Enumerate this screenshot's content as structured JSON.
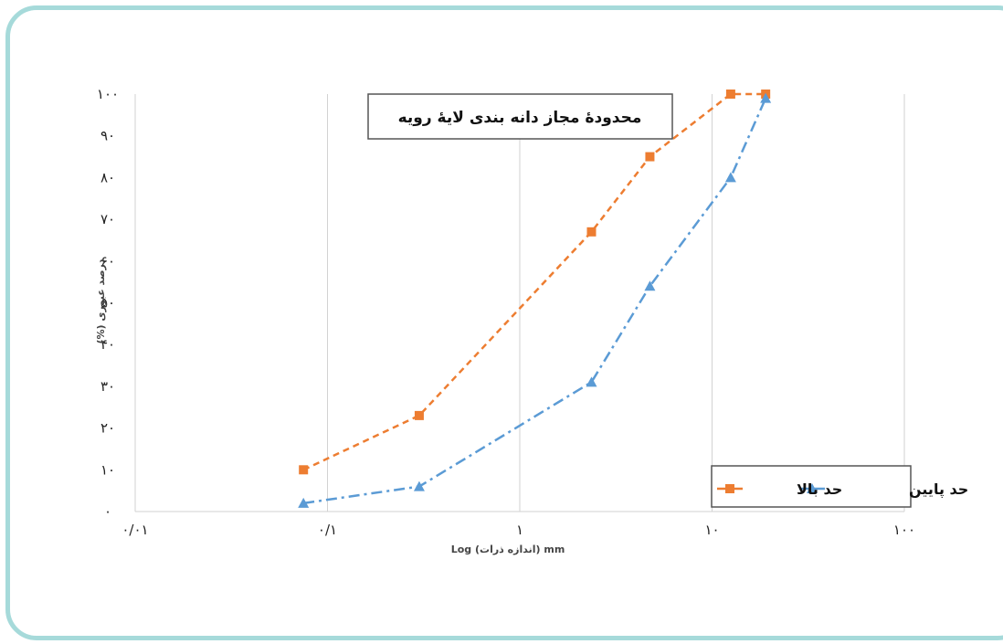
{
  "chart_data": {
    "type": "line",
    "title": "محدودهٔ مجاز دانه بندی لایهٔ رویه",
    "xlabel": "Log (اندازه ذرات) mm",
    "ylabel": "درصد عبوری (%)",
    "x_scale": "log",
    "xlim": [
      0.01,
      100
    ],
    "ylim": [
      0,
      100
    ],
    "x_ticks": [
      0.01,
      0.1,
      1,
      10,
      100
    ],
    "x_tick_labels": [
      "۰/۰۱",
      "۰/۱",
      "۱",
      "۱۰",
      "۱۰۰"
    ],
    "y_ticks": [
      0,
      10,
      20,
      30,
      40,
      50,
      60,
      70,
      80,
      90,
      100
    ],
    "y_tick_labels": [
      "۰",
      "۱۰",
      "۲۰",
      "۳۰",
      "۴۰",
      "۵۰",
      "۶۰",
      "۷۰",
      "۸۰",
      "۹۰",
      "۱۰۰"
    ],
    "grid": "vertical",
    "legend_position": "bottom-right",
    "series": [
      {
        "name": "حد بالا",
        "color": "#ed7d31",
        "style": "dashed",
        "marker": "square",
        "x": [
          0.075,
          0.3,
          2.36,
          4.75,
          12.5,
          19
        ],
        "y": [
          10,
          23,
          67,
          85,
          100,
          100
        ]
      },
      {
        "name": "حد پایین",
        "color": "#5b9bd5",
        "style": "dash-dot",
        "marker": "triangle",
        "x": [
          0.075,
          0.3,
          2.36,
          4.75,
          12.5,
          19
        ],
        "y": [
          2,
          6,
          31,
          54,
          80,
          99
        ]
      }
    ]
  }
}
